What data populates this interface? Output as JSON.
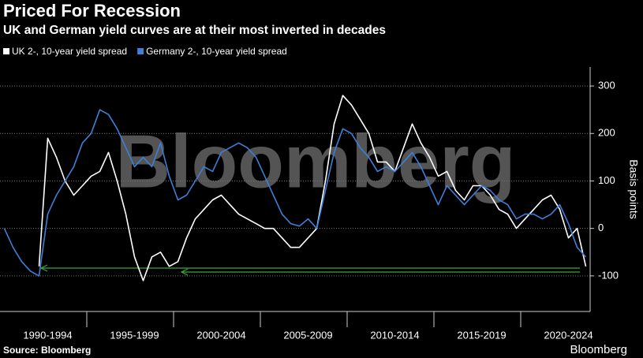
{
  "chart_data": {
    "type": "line",
    "title": "Priced For Recession",
    "subtitle": "UK and German yield curves are at their most inverted in decades",
    "y_label": "Basis points",
    "watermark": "Bloomberg",
    "source": "Source: Bloomberg",
    "logo": "Bloomberg",
    "categories": [
      null,
      null,
      null,
      null,
      null,
      "1990-1994",
      null,
      null,
      null,
      null,
      null,
      null,
      null,
      null,
      null,
      "1995-1999",
      null,
      null,
      null,
      null,
      null,
      null,
      null,
      null,
      null,
      "2000-2004",
      null,
      null,
      null,
      null,
      null,
      null,
      null,
      null,
      null,
      "2005-2009",
      null,
      null,
      null,
      null,
      null,
      null,
      null,
      null,
      null,
      "2010-2014",
      null,
      null,
      null,
      null,
      null,
      null,
      null,
      null,
      null,
      "2015-2019",
      null,
      null,
      null,
      null,
      null,
      null,
      null,
      null,
      null,
      "2020-2024",
      null,
      null
    ],
    "series": [
      {
        "name": "UK 2-, 10-year yield spread",
        "color": "#ffffff",
        "values": [
          null,
          null,
          null,
          null,
          -80,
          190,
          150,
          100,
          70,
          90,
          110,
          120,
          160,
          100,
          30,
          -60,
          -110,
          -60,
          -50,
          -80,
          -70,
          -20,
          20,
          40,
          60,
          70,
          50,
          30,
          20,
          10,
          0,
          0,
          -20,
          -40,
          -40,
          -20,
          0,
          100,
          220,
          280,
          260,
          230,
          200,
          140,
          140,
          120,
          170,
          220,
          180,
          150,
          110,
          120,
          80,
          60,
          90,
          90,
          70,
          40,
          30,
          0,
          20,
          40,
          60,
          70,
          40,
          -20,
          0,
          -80
        ]
      },
      {
        "name": "Germany 2-, 10-year yield spread",
        "color": "#3d7fd9",
        "values": [
          0,
          -40,
          -70,
          -90,
          -100,
          30,
          70,
          100,
          130,
          180,
          200,
          250,
          240,
          210,
          170,
          130,
          150,
          130,
          180,
          110,
          60,
          70,
          100,
          130,
          120,
          160,
          170,
          180,
          170,
          150,
          110,
          70,
          30,
          10,
          5,
          20,
          0,
          80,
          160,
          210,
          200,
          170,
          150,
          120,
          130,
          120,
          140,
          160,
          130,
          90,
          50,
          90,
          70,
          50,
          70,
          90,
          80,
          60,
          50,
          20,
          30,
          30,
          20,
          30,
          50,
          10,
          -40,
          -60
        ]
      }
    ],
    "ylim": [
      -175,
      340
    ],
    "yticks": [
      300,
      200,
      100,
      0,
      -100
    ],
    "grid": true
  }
}
